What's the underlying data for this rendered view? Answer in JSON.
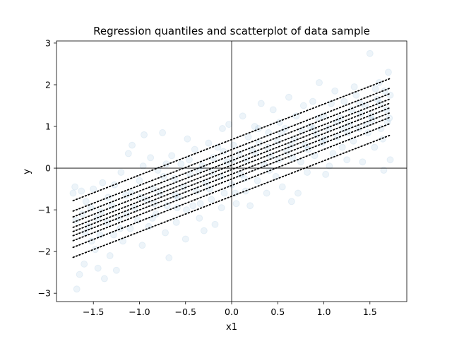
{
  "chart_data": {
    "type": "scatter",
    "title": "Regression quantiles and scatterplot of data sample",
    "xlabel": "x1",
    "ylabel": "y",
    "xlim": [
      -1.9,
      1.9
    ],
    "ylim": [
      -3.2,
      3.05
    ],
    "xticks": [
      -1.5,
      -1.0,
      -0.5,
      0.0,
      0.5,
      1.0,
      1.5
    ],
    "xtick_labels": [
      "−1.5",
      "−1.0",
      "−0.5",
      "0.0",
      "0.5",
      "1.0",
      "1.5"
    ],
    "yticks": [
      -3,
      -2,
      -1,
      0,
      1,
      2,
      3
    ],
    "ytick_labels": [
      "−3",
      "−2",
      "−1",
      "0",
      "1",
      "2",
      "3"
    ],
    "reference_lines": {
      "x": 0,
      "y": 0
    },
    "grid": false,
    "legend": "none",
    "colors": {
      "points": "#1f77b4",
      "quantile_lines": "#000000",
      "reference_lines": "#000000"
    },
    "point_alpha": 0.08,
    "quantile_lines": [
      {
        "x": [
          -1.72,
          1.72
        ],
        "y": [
          -0.78,
          2.15
        ]
      },
      {
        "x": [
          -1.72,
          1.72
        ],
        "y": [
          -1.03,
          1.92
        ]
      },
      {
        "x": [
          -1.72,
          1.72
        ],
        "y": [
          -1.17,
          1.79
        ]
      },
      {
        "x": [
          -1.72,
          1.72
        ],
        "y": [
          -1.3,
          1.66
        ]
      },
      {
        "x": [
          -1.72,
          1.72
        ],
        "y": [
          -1.42,
          1.56
        ]
      },
      {
        "x": [
          -1.72,
          1.72
        ],
        "y": [
          -1.52,
          1.45
        ]
      },
      {
        "x": [
          -1.72,
          1.72
        ],
        "y": [
          -1.62,
          1.33
        ]
      },
      {
        "x": [
          -1.72,
          1.72
        ],
        "y": [
          -1.74,
          1.22
        ]
      },
      {
        "x": [
          -1.72,
          1.72
        ],
        "y": [
          -1.9,
          1.07
        ]
      },
      {
        "x": [
          -1.72,
          1.72
        ],
        "y": [
          -2.14,
          0.79
        ]
      }
    ],
    "points": [
      [
        -1.7,
        -0.45
      ],
      [
        -1.72,
        -0.6
      ],
      [
        -1.68,
        -2.9
      ],
      [
        -1.65,
        -2.55
      ],
      [
        -1.6,
        -2.3
      ],
      [
        -1.62,
        -1.1
      ],
      [
        -1.58,
        -0.8
      ],
      [
        -1.55,
        -1.4
      ],
      [
        -1.52,
        -1.75
      ],
      [
        -1.5,
        -0.5
      ],
      [
        -1.48,
        -1.95
      ],
      [
        -1.45,
        -2.4
      ],
      [
        -1.42,
        -1.05
      ],
      [
        -1.4,
        -0.35
      ],
      [
        -1.38,
        -2.65
      ],
      [
        -1.35,
        -1.3
      ],
      [
        -1.32,
        -2.1
      ],
      [
        -1.3,
        -0.9
      ],
      [
        -1.28,
        -1.6
      ],
      [
        -1.25,
        -2.45
      ],
      [
        -1.22,
        -1.2
      ],
      [
        -1.2,
        -0.1
      ],
      [
        -1.18,
        -1.75
      ],
      [
        -1.15,
        -0.65
      ],
      [
        -1.12,
        0.35
      ],
      [
        -1.1,
        -1.45
      ],
      [
        -1.08,
        0.55
      ],
      [
        -1.05,
        -0.95
      ],
      [
        -1.02,
        -1.25
      ],
      [
        -1.0,
        -0.3
      ],
      [
        -0.97,
        -1.85
      ],
      [
        -0.95,
        0.8
      ],
      [
        -0.92,
        -0.75
      ],
      [
        -0.9,
        -1.4
      ],
      [
        -0.88,
        0.25
      ],
      [
        -0.85,
        -0.5
      ],
      [
        -0.82,
        -1.1
      ],
      [
        -0.8,
        -0.05
      ],
      [
        -0.78,
        -0.6
      ],
      [
        -0.75,
        0.85
      ],
      [
        -0.72,
        -1.55
      ],
      [
        -0.7,
        -0.9
      ],
      [
        -0.68,
        -2.15
      ],
      [
        -0.65,
        0.3
      ],
      [
        -0.62,
        -0.25
      ],
      [
        -0.6,
        -1.3
      ],
      [
        -0.58,
        -0.7
      ],
      [
        -0.55,
        0.1
      ],
      [
        -0.52,
        -0.45
      ],
      [
        -0.5,
        -1.7
      ],
      [
        -0.48,
        0.7
      ],
      [
        -0.45,
        -0.15
      ],
      [
        -0.42,
        -0.9
      ],
      [
        -0.4,
        0.45
      ],
      [
        -0.38,
        -0.55
      ],
      [
        -0.35,
        -1.2
      ],
      [
        -0.32,
        0.05
      ],
      [
        -0.3,
        -1.5
      ],
      [
        -0.28,
        -0.35
      ],
      [
        -0.25,
        0.6
      ],
      [
        -0.22,
        -0.75
      ],
      [
        -0.2,
        0.25
      ],
      [
        -0.18,
        -1.35
      ],
      [
        -0.15,
        0.5
      ],
      [
        -0.12,
        -0.2
      ],
      [
        -0.1,
        0.95
      ],
      [
        -0.08,
        -0.6
      ],
      [
        -0.05,
        0.15
      ],
      [
        -0.03,
        1.05
      ],
      [
        0.0,
        -0.4
      ],
      [
        0.02,
        0.55
      ],
      [
        0.05,
        -0.85
      ],
      [
        0.08,
        0.35
      ],
      [
        0.1,
        -0.15
      ],
      [
        0.12,
        1.25
      ],
      [
        0.15,
        -0.55
      ],
      [
        0.18,
        0.75
      ],
      [
        0.2,
        -0.9
      ],
      [
        0.22,
        0.45
      ],
      [
        0.25,
        1.0
      ],
      [
        0.28,
        -0.3
      ],
      [
        0.3,
        0.6
      ],
      [
        0.32,
        1.55
      ],
      [
        0.35,
        0.1
      ],
      [
        0.38,
        -0.6
      ],
      [
        0.4,
        0.85
      ],
      [
        0.42,
        0.3
      ],
      [
        0.45,
        1.4
      ],
      [
        0.48,
        -0.2
      ],
      [
        0.5,
        0.65
      ],
      [
        0.52,
        1.1
      ],
      [
        0.55,
        -0.45
      ],
      [
        0.58,
        0.95
      ],
      [
        0.6,
        0.4
      ],
      [
        0.62,
        1.7
      ],
      [
        0.65,
        -0.8
      ],
      [
        0.68,
        0.7
      ],
      [
        0.7,
        1.25
      ],
      [
        0.72,
        -0.6
      ],
      [
        0.75,
        0.15
      ],
      [
        0.78,
        1.5
      ],
      [
        0.8,
        0.55
      ],
      [
        0.82,
        -0.1
      ],
      [
        0.85,
        1.0
      ],
      [
        0.88,
        1.6
      ],
      [
        0.9,
        0.3
      ],
      [
        0.92,
        0.8
      ],
      [
        0.95,
        2.05
      ],
      [
        0.98,
        0.6
      ],
      [
        1.0,
        1.25
      ],
      [
        1.02,
        -0.15
      ],
      [
        1.05,
        0.95
      ],
      [
        1.08,
        1.55
      ],
      [
        1.1,
        0.35
      ],
      [
        1.12,
        1.85
      ],
      [
        1.15,
        0.75
      ],
      [
        1.18,
        1.2
      ],
      [
        1.2,
        0.5
      ],
      [
        1.22,
        1.6
      ],
      [
        1.25,
        0.2
      ],
      [
        1.28,
        1.05
      ],
      [
        1.3,
        1.4
      ],
      [
        1.32,
        0.65
      ],
      [
        1.35,
        1.75
      ],
      [
        1.38,
        0.95
      ],
      [
        1.4,
        1.3
      ],
      [
        1.42,
        0.15
      ],
      [
        1.45,
        1.5
      ],
      [
        1.48,
        0.85
      ],
      [
        1.5,
        2.75
      ],
      [
        1.52,
        1.15
      ],
      [
        1.55,
        0.5
      ],
      [
        1.58,
        1.65
      ],
      [
        1.6,
        2.05
      ],
      [
        1.62,
        0.95
      ],
      [
        1.65,
        -0.05
      ],
      [
        1.68,
        1.4
      ],
      [
        1.7,
        2.3
      ],
      [
        1.72,
        0.2
      ],
      [
        1.72,
        1.75
      ],
      [
        1.69,
        1.1
      ],
      [
        1.64,
        0.7
      ],
      [
        1.56,
        1.9
      ],
      [
        1.46,
        1.05
      ],
      [
        1.33,
        1.95
      ],
      [
        1.21,
        0.95
      ],
      [
        1.06,
        0.05
      ],
      [
        0.94,
        1.2
      ],
      [
        0.83,
        0.45
      ],
      [
        0.66,
        0.25
      ],
      [
        0.54,
        0.85
      ],
      [
        0.41,
        -0.05
      ],
      [
        0.29,
        0.95
      ],
      [
        0.16,
        0.2
      ],
      [
        0.04,
        -0.6
      ],
      [
        -0.09,
        0.4
      ],
      [
        -0.21,
        -0.1
      ],
      [
        -0.34,
        -0.85
      ],
      [
        -0.46,
        0.2
      ],
      [
        -0.59,
        -0.95
      ],
      [
        -0.71,
        0.1
      ],
      [
        -0.84,
        -0.85
      ],
      [
        -0.96,
        0.05
      ],
      [
        -1.09,
        -0.6
      ],
      [
        -1.21,
        -1.45
      ],
      [
        -1.34,
        -0.7
      ],
      [
        -1.46,
        -1.2
      ],
      [
        -1.59,
        -1.55
      ],
      [
        -1.69,
        -1.25
      ],
      [
        -1.63,
        -0.55
      ],
      [
        -1.53,
        -0.95
      ],
      [
        -1.43,
        -1.6
      ],
      [
        -1.27,
        -0.4
      ],
      [
        -1.14,
        -1.1
      ],
      [
        -0.99,
        -0.7
      ],
      [
        -0.86,
        -1.2
      ],
      [
        -0.74,
        -0.2
      ],
      [
        -0.61,
        -0.65
      ],
      [
        -0.49,
        -1.0
      ],
      [
        -0.36,
        -0.05
      ],
      [
        -0.24,
        -0.5
      ],
      [
        -0.11,
        -0.95
      ],
      [
        0.01,
        0.2
      ],
      [
        0.14,
        -0.25
      ],
      [
        0.26,
        0.35
      ],
      [
        0.39,
        0.5
      ],
      [
        0.51,
        0.2
      ],
      [
        0.64,
        0.55
      ],
      [
        0.76,
        0.9
      ],
      [
        0.89,
        0.95
      ],
      [
        1.01,
        0.7
      ],
      [
        1.14,
        1.1
      ],
      [
        1.26,
        0.85
      ],
      [
        1.39,
        1.55
      ],
      [
        1.51,
        1.25
      ],
      [
        1.61,
        1.55
      ],
      [
        1.71,
        1.2
      ],
      [
        1.66,
        1.85
      ]
    ]
  }
}
